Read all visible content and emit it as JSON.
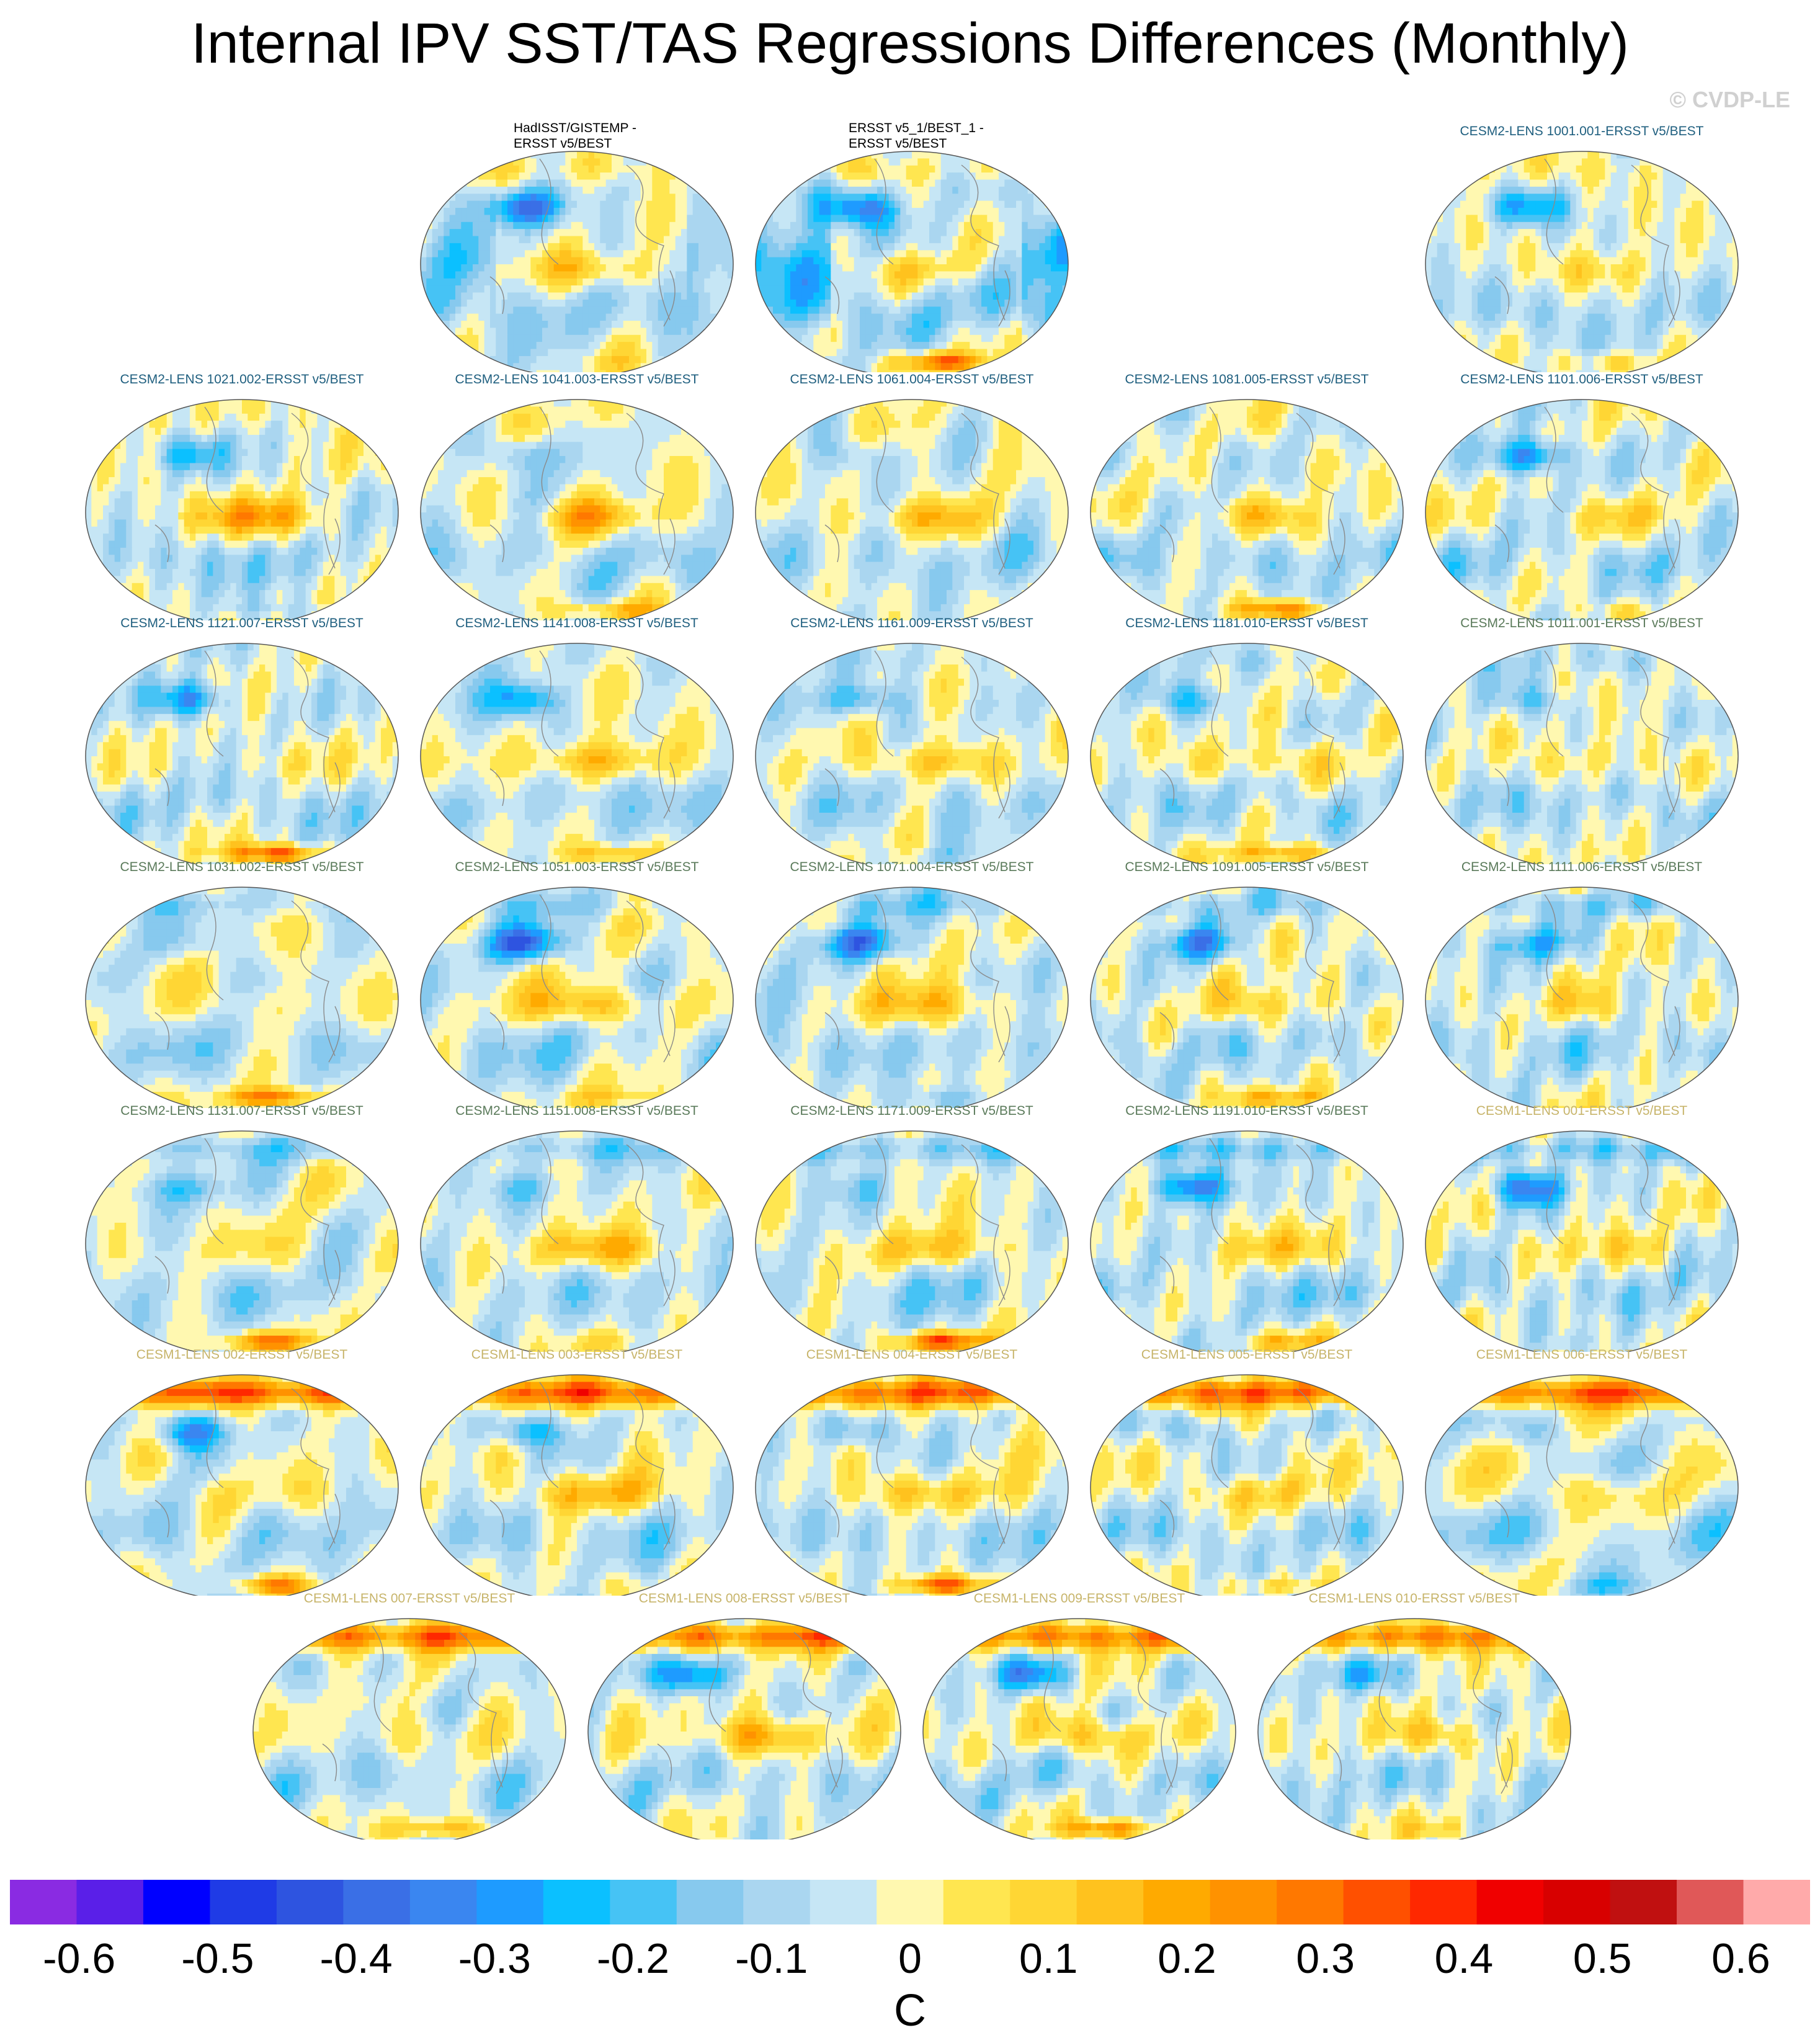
{
  "title": "Internal IPV SST/TAS Regressions Differences (Monthly)",
  "copyright": "© CVDP-LE",
  "units": "C",
  "colors": {
    "title_cesm2_a": "#1f5f7f",
    "title_cesm2_b": "#5a7a5a",
    "title_cesm1": "#c7b46a",
    "title_obs": "#000000"
  },
  "chart_data": {
    "type": "heatmap",
    "projection": "robinson",
    "colorbar": {
      "ticks": [
        "-0.6",
        "-0.5",
        "-0.4",
        "-0.3",
        "-0.2",
        "-0.1",
        "0",
        "0.1",
        "0.2",
        "0.3",
        "0.4",
        "0.5",
        "0.6"
      ],
      "tick_values": [
        -0.6,
        -0.5,
        -0.4,
        -0.3,
        -0.2,
        -0.1,
        0,
        0.1,
        0.2,
        0.3,
        0.4,
        0.5,
        0.6
      ],
      "range": [
        -0.65,
        0.65
      ],
      "step": 0.05,
      "colors": [
        "#8a2be2",
        "#5a1fe8",
        "#0000ff",
        "#1f3be6",
        "#2e54e0",
        "#3a6fe6",
        "#3a86f0",
        "#1e9bff",
        "#0bc0ff",
        "#46c3f5",
        "#87c9ee",
        "#aad6f0",
        "#c6e6f5",
        "#fff8b0",
        "#ffe650",
        "#ffd634",
        "#ffc21e",
        "#ffaa00",
        "#ff9200",
        "#ff7800",
        "#ff5000",
        "#ff2800",
        "#f00000",
        "#d80000",
        "#c01010",
        "#e05858",
        "#ffaaaa"
      ]
    },
    "panels": [
      {
        "title": "HadISST/GISTEMP -\nERSST v5/BEST",
        "group": "obs",
        "pattern": 0
      },
      {
        "title": "ERSST v5_1/BEST_1 -\nERSST v5/BEST",
        "group": "obs",
        "pattern": 1
      },
      {
        "title": "CESM2-LENS 1001.001-ERSST v5/BEST",
        "group": "cesm2a",
        "pattern": 2
      },
      {
        "title": "CESM2-LENS 1021.002-ERSST v5/BEST",
        "group": "cesm2a",
        "pattern": 3
      },
      {
        "title": "CESM2-LENS 1041.003-ERSST v5/BEST",
        "group": "cesm2a",
        "pattern": 4
      },
      {
        "title": "CESM2-LENS 1061.004-ERSST v5/BEST",
        "group": "cesm2a",
        "pattern": 5
      },
      {
        "title": "CESM2-LENS 1081.005-ERSST v5/BEST",
        "group": "cesm2a",
        "pattern": 6
      },
      {
        "title": "CESM2-LENS 1101.006-ERSST v5/BEST",
        "group": "cesm2a",
        "pattern": 7
      },
      {
        "title": "CESM2-LENS 1121.007-ERSST v5/BEST",
        "group": "cesm2a",
        "pattern": 8
      },
      {
        "title": "CESM2-LENS 1141.008-ERSST v5/BEST",
        "group": "cesm2a",
        "pattern": 9
      },
      {
        "title": "CESM2-LENS 1161.009-ERSST v5/BEST",
        "group": "cesm2a",
        "pattern": 10
      },
      {
        "title": "CESM2-LENS 1181.010-ERSST v5/BEST",
        "group": "cesm2a",
        "pattern": 11
      },
      {
        "title": "CESM2-LENS 1011.001-ERSST v5/BEST",
        "group": "cesm2b",
        "pattern": 12
      },
      {
        "title": "CESM2-LENS 1031.002-ERSST v5/BEST",
        "group": "cesm2b",
        "pattern": 13
      },
      {
        "title": "CESM2-LENS 1051.003-ERSST v5/BEST",
        "group": "cesm2b",
        "pattern": 14
      },
      {
        "title": "CESM2-LENS 1071.004-ERSST v5/BEST",
        "group": "cesm2b",
        "pattern": 15
      },
      {
        "title": "CESM2-LENS 1091.005-ERSST v5/BEST",
        "group": "cesm2b",
        "pattern": 16
      },
      {
        "title": "CESM2-LENS 1111.006-ERSST v5/BEST",
        "group": "cesm2b",
        "pattern": 17
      },
      {
        "title": "CESM2-LENS 1131.007-ERSST v5/BEST",
        "group": "cesm2b",
        "pattern": 18
      },
      {
        "title": "CESM2-LENS 1151.008-ERSST v5/BEST",
        "group": "cesm2b",
        "pattern": 19
      },
      {
        "title": "CESM2-LENS 1171.009-ERSST v5/BEST",
        "group": "cesm2b",
        "pattern": 20
      },
      {
        "title": "CESM2-LENS 1191.010-ERSST v5/BEST",
        "group": "cesm2b",
        "pattern": 21
      },
      {
        "title": "CESM1-LENS 001-ERSST v5/BEST",
        "group": "cesm1",
        "pattern": 22
      },
      {
        "title": "CESM1-LENS 002-ERSST v5/BEST",
        "group": "cesm1",
        "pattern": 23
      },
      {
        "title": "CESM1-LENS 003-ERSST v5/BEST",
        "group": "cesm1",
        "pattern": 24
      },
      {
        "title": "CESM1-LENS 004-ERSST v5/BEST",
        "group": "cesm1",
        "pattern": 25
      },
      {
        "title": "CESM1-LENS 005-ERSST v5/BEST",
        "group": "cesm1",
        "pattern": 26
      },
      {
        "title": "CESM1-LENS 006-ERSST v5/BEST",
        "group": "cesm1",
        "pattern": 27
      },
      {
        "title": "CESM1-LENS 007-ERSST v5/BEST",
        "group": "cesm1",
        "pattern": 28
      },
      {
        "title": "CESM1-LENS 008-ERSST v5/BEST",
        "group": "cesm1",
        "pattern": 29
      },
      {
        "title": "CESM1-LENS 009-ERSST v5/BEST",
        "group": "cesm1",
        "pattern": 30
      },
      {
        "title": "CESM1-LENS 010-ERSST v5/BEST",
        "group": "cesm1",
        "pattern": 31
      }
    ]
  }
}
